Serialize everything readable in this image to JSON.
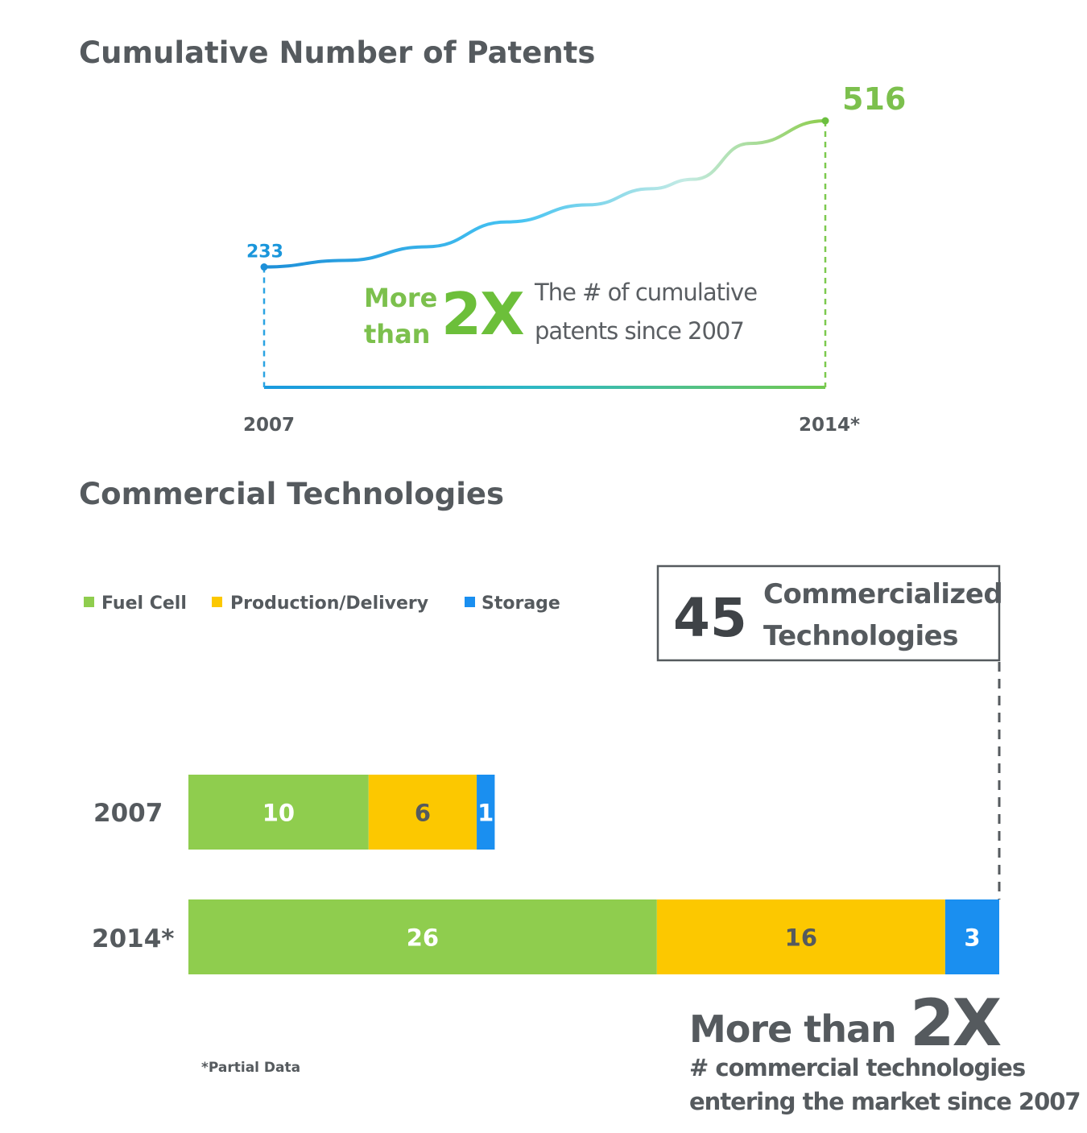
{
  "chart_data": [
    {
      "type": "line",
      "title": "Cumulative Number of Patents",
      "x": [
        "2007",
        "2014*"
      ],
      "y": [
        233,
        516
      ],
      "point_labels": [
        "233",
        "516"
      ],
      "annotation": {
        "prefix_line1": "More",
        "prefix_line2": "than",
        "multiplier": "2X",
        "text_line1": "The # of cumulative",
        "text_line2": "patents since 2007"
      }
    },
    {
      "type": "bar",
      "orientation": "horizontal",
      "stacked": true,
      "title": "Commercial Technologies",
      "categories": [
        "2007",
        "2014*"
      ],
      "series": [
        {
          "name": "Fuel Cell",
          "values": [
            10,
            26
          ],
          "color": "#8fcd4e"
        },
        {
          "name": "Production/Delivery",
          "values": [
            6,
            16
          ],
          "color": "#fcc800"
        },
        {
          "name": "Storage",
          "values": [
            1,
            3
          ],
          "color": "#1a8ff0"
        }
      ],
      "legend_position": "top-left",
      "callout": {
        "number": "45",
        "line1": "Commercialized",
        "line2": "Technologies"
      },
      "annotation": {
        "prefix": "More than",
        "multiplier": "2X",
        "line1": "# commercial technologies",
        "line2": "entering the market since 2007"
      },
      "footnote": "*Partial Data"
    }
  ]
}
